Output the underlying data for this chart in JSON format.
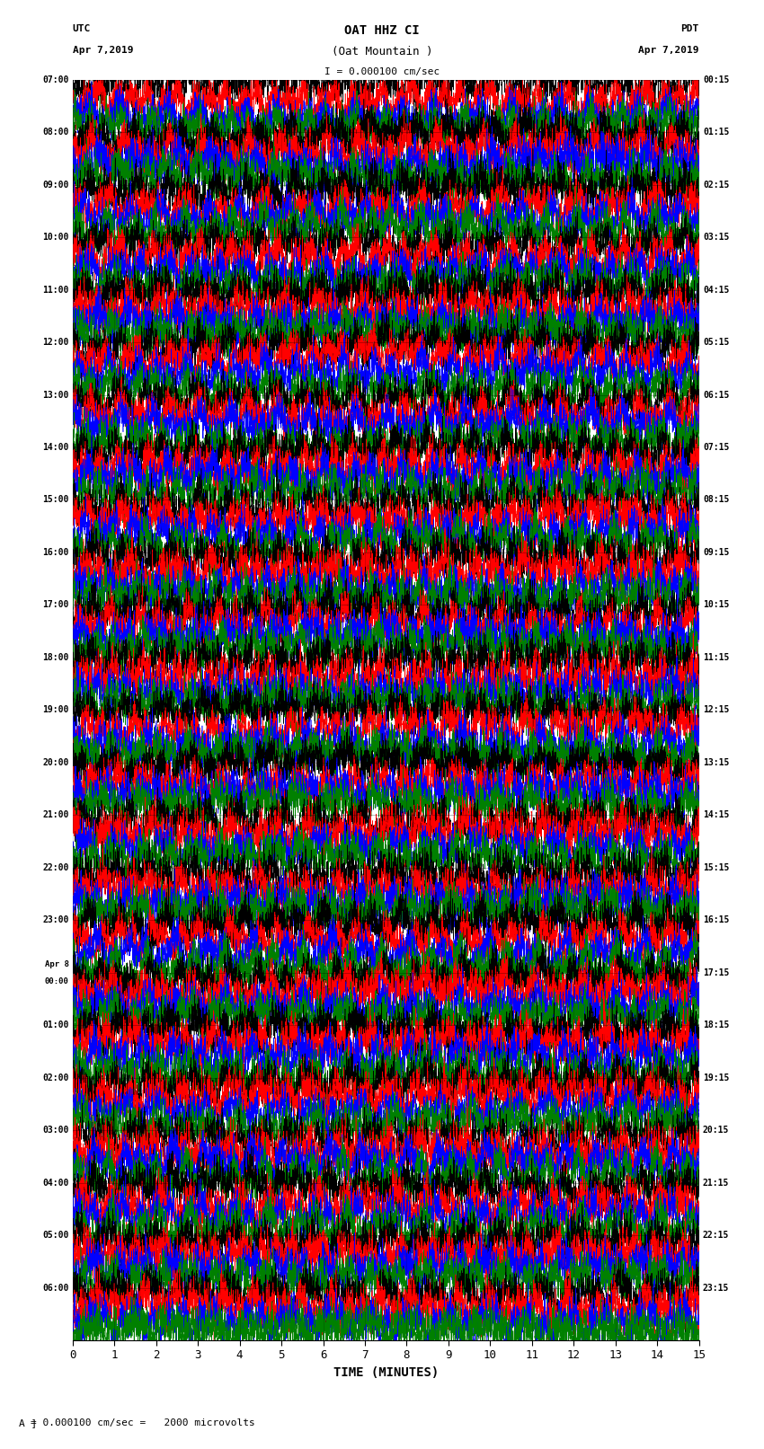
{
  "title_line1": "OAT HHZ CI",
  "title_line2": "(Oat Mountain )",
  "title_line3": "I = 0.000100 cm/sec",
  "utc_label": "UTC",
  "utc_date": "Apr 7,2019",
  "pdt_label": "PDT",
  "pdt_date": "Apr 7,2019",
  "xlabel": "TIME (MINUTES)",
  "footer": "= 0.000100 cm/sec =   2000 microvolts",
  "left_times": [
    "07:00",
    "08:00",
    "09:00",
    "10:00",
    "11:00",
    "12:00",
    "13:00",
    "14:00",
    "15:00",
    "16:00",
    "17:00",
    "18:00",
    "19:00",
    "20:00",
    "21:00",
    "22:00",
    "23:00",
    "Apr 8\n00:00",
    "01:00",
    "02:00",
    "03:00",
    "04:00",
    "05:00",
    "06:00"
  ],
  "right_times": [
    "00:15",
    "01:15",
    "02:15",
    "03:15",
    "04:15",
    "05:15",
    "06:15",
    "07:15",
    "08:15",
    "09:15",
    "10:15",
    "11:15",
    "12:15",
    "13:15",
    "14:15",
    "15:15",
    "16:15",
    "17:15",
    "18:15",
    "19:15",
    "20:15",
    "21:15",
    "22:15",
    "23:15"
  ],
  "num_rows": 24,
  "traces_per_row": 4,
  "time_minutes": 15,
  "colors": [
    "black",
    "red",
    "blue",
    "green"
  ],
  "background_color": "white",
  "xticks": [
    0,
    1,
    2,
    3,
    4,
    5,
    6,
    7,
    8,
    9,
    10,
    11,
    12,
    13,
    14,
    15
  ],
  "figwidth": 8.5,
  "figheight": 16.13
}
